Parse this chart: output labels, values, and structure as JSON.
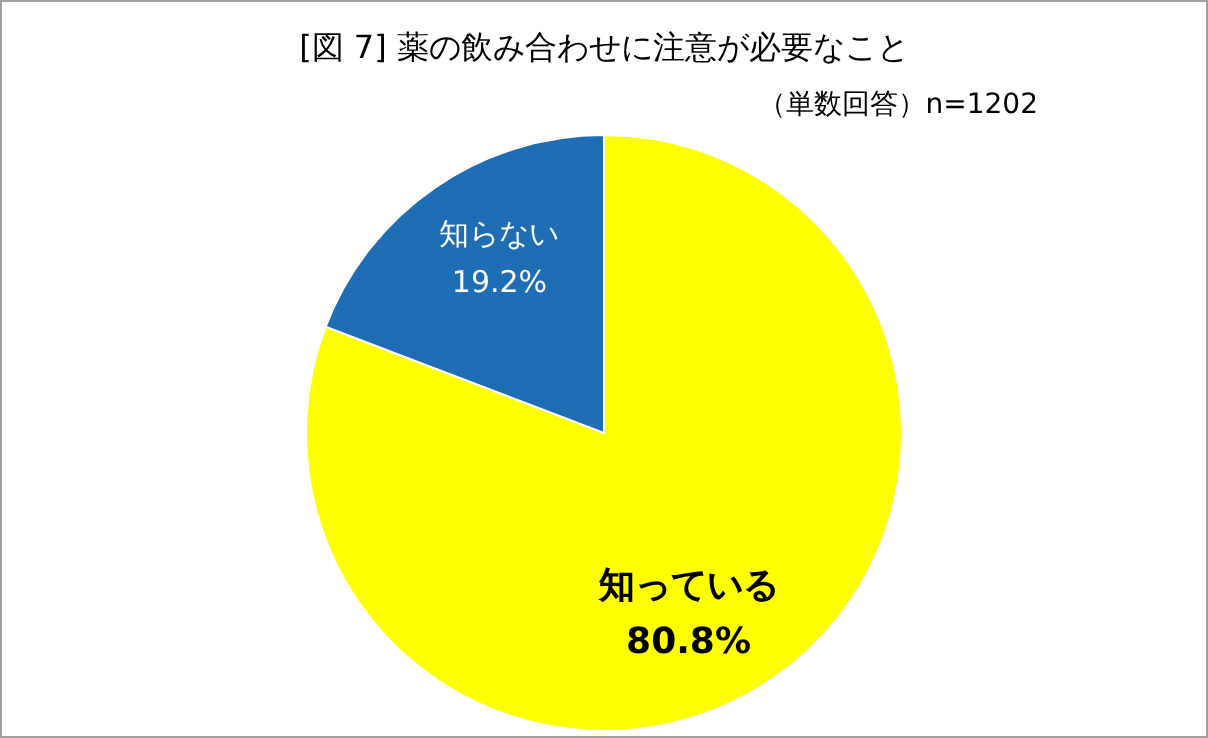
{
  "chart_data": {
    "type": "pie",
    "title": "[図 7] 薬の飲み合わせに注意が必要なこと",
    "subtitle": "（単数回答）n=1202",
    "categories": [
      "知っている",
      "知らない"
    ],
    "values": [
      80.8,
      19.2
    ],
    "colors": [
      "#ffff00",
      "#1f6db5"
    ],
    "value_labels": [
      "80.8%",
      "19.2%"
    ],
    "legend": false
  }
}
